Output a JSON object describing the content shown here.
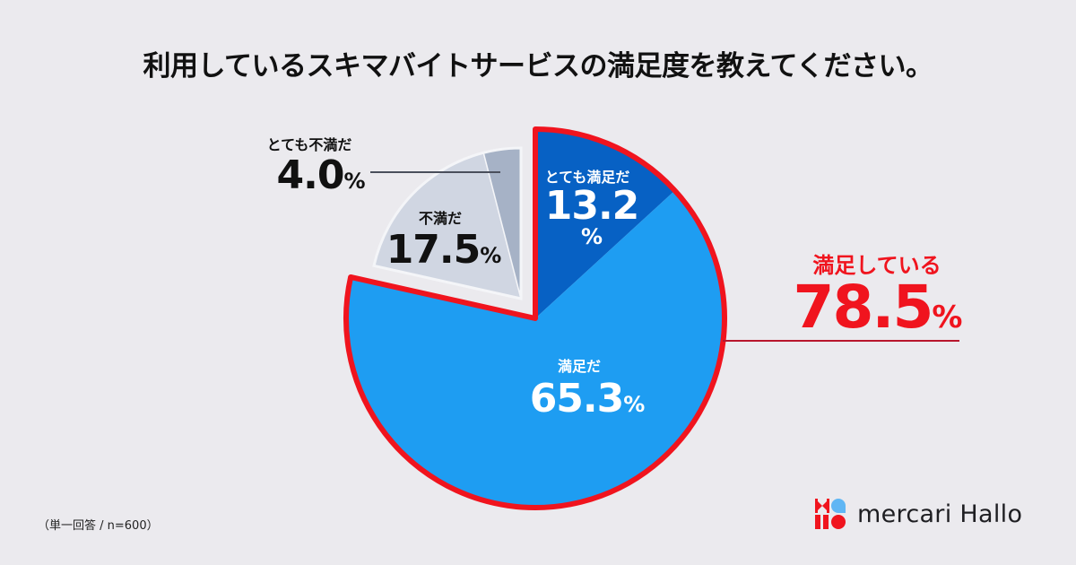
{
  "title": "利用しているスキマバイトサービスの満足度を教えてください。",
  "labels": {
    "very_dissatisfied": {
      "name": "とても不満だ",
      "value": "4.0",
      "pct": "%"
    },
    "dissatisfied": {
      "name": "不満だ",
      "value": "17.5",
      "pct": "%"
    },
    "very_satisfied": {
      "name": "とても満足だ",
      "value": "13.2",
      "pct": "%"
    },
    "satisfied": {
      "name": "満足だ",
      "value": "65.3",
      "pct": "%"
    },
    "total_satisfied": {
      "name": "満足している",
      "value": "78.5",
      "pct": "%"
    }
  },
  "footnote": "（単一回答 / n=600）",
  "logo": {
    "text": "mercari Hallo",
    "icon": "mercari-hallo-logo-icon"
  },
  "colors": {
    "background": "#ebeaee",
    "very_satisfied": "#0761c4",
    "satisfied": "#1e9df2",
    "dissatisfied": "#d0d6e2",
    "very_dissatisfied": "#a6b2c6",
    "highlight_outline": "#f0141e",
    "leader_line": "#4a4f5c"
  },
  "chart_data": {
    "type": "pie",
    "title": "利用しているスキマバイトサービスの満足度を教えてください。",
    "categories": [
      "とても満足だ",
      "満足だ",
      "不満だ",
      "とても不満だ"
    ],
    "values": [
      13.2,
      65.3,
      17.5,
      4.0
    ],
    "unit": "%",
    "colors": [
      "#0761c4",
      "#1e9df2",
      "#d0d6e2",
      "#a6b2c6"
    ],
    "annotations": [
      {
        "text": "満足している 78.5%",
        "covers": [
          "とても満足だ",
          "満足だ"
        ],
        "style": "red outline"
      }
    ],
    "exploded": [
      "不満だ",
      "とても不満だ"
    ],
    "sample_note": "（単一回答 / n=600）"
  }
}
